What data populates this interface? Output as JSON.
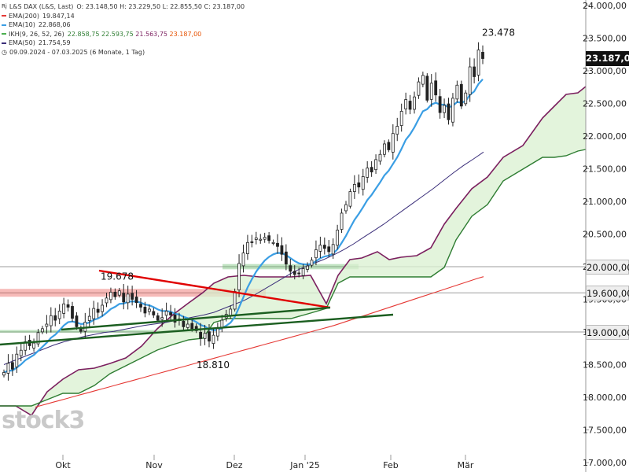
{
  "header": {
    "symbol_line": "L&S DAX (L&S, Last)",
    "ohlc": "O: 23.148,50  H: 23.229,50  L: 22.855,50  C: 23.187,00",
    "date_range": "09.09.2024 - 07.03.2025  (6 Monate, 1 Tag)"
  },
  "legend": [
    {
      "label": "EMA(200)",
      "value": "19.847,14",
      "color": "#e53935"
    },
    {
      "label": "EMA(10)",
      "value": "22.868,06",
      "color": "#3a9ee4"
    },
    {
      "label": "IKH(9, 26, 52, 26)",
      "value": "22.858,75  22.593,75  21.563,75  23.187,00",
      "color": "#4caf50"
    },
    {
      "label": "EMA(50)",
      "value": "21.754,59",
      "color": "#3b2f7a"
    }
  ],
  "watermark": "stock3",
  "chart_data": {
    "type": "candlestick",
    "title": "L&S DAX (L&S, Last)",
    "x_labels": [
      "Okt",
      "Nov",
      "Dez",
      "Jan '25",
      "Feb",
      "Mär"
    ],
    "y_ticks": [
      "24.000,00",
      "23.500,00",
      "23.000,00",
      "22.500,00",
      "22.000,00",
      "21.500,00",
      "21.000,00",
      "20.500,00",
      "20.000,00",
      "19.500,00",
      "19.000,00",
      "18.500,00",
      "18.000,00",
      "17.500,00",
      "17.000,00"
    ],
    "ylim": [
      17000,
      24000
    ],
    "price_tags": [
      {
        "label": "23.187,00",
        "value": 23187,
        "style": "dark"
      },
      {
        "label": "20.000,00",
        "value": 20000,
        "style": "light"
      },
      {
        "label": "19.600,00",
        "value": 19600,
        "style": "light"
      },
      {
        "label": "19.000,00",
        "value": 19000,
        "style": "light"
      }
    ],
    "horizontal_lines": [
      20000,
      19600,
      19000
    ],
    "zones": [
      {
        "name": "resistance-zone",
        "from": 19540,
        "to": 19660,
        "color": "#e53935"
      },
      {
        "name": "support-zone-green",
        "from": 18990,
        "to": 19030,
        "color": "#4caf50"
      },
      {
        "name": "breakout-zone",
        "from": 19960,
        "to": 20040,
        "color": "#4caf50"
      }
    ],
    "annotations": [
      {
        "text": "23.478",
        "value": 23478
      },
      {
        "text": "19.678",
        "value": 19678
      },
      {
        "text": "18.810",
        "value": 18810
      }
    ],
    "closes": [
      18380,
      18520,
      18430,
      18660,
      18720,
      18850,
      18790,
      18830,
      18990,
      19050,
      19120,
      19250,
      19180,
      19320,
      19430,
      19380,
      19210,
      19080,
      19010,
      19150,
      19240,
      19360,
      19300,
      19410,
      19520,
      19610,
      19540,
      19630,
      19460,
      19580,
      19500,
      19450,
      19380,
      19290,
      19350,
      19260,
      19180,
      19220,
      19320,
      19260,
      19150,
      19200,
      19080,
      19120,
      19050,
      19020,
      18900,
      18980,
      18860,
      18950,
      19050,
      19180,
      19270,
      19350,
      19620,
      20050,
      20210,
      20370,
      20380,
      20440,
      20420,
      20450,
      20400,
      20370,
      20310,
      20190,
      20040,
      19930,
      19880,
      19900,
      19970,
      20010,
      20100,
      20260,
      20330,
      20280,
      20230,
      20340,
      20560,
      20820,
      20950,
      21150,
      21260,
      21220,
      21380,
      21510,
      21450,
      21640,
      21720,
      21880,
      21790,
      22040,
      22150,
      22380,
      22560,
      22410,
      22600,
      22830,
      22930,
      22550,
      22810,
      22630,
      22360,
      22470,
      22250,
      22580,
      22780,
      22460,
      22660,
      23060,
      22910,
      23320,
      23187
    ],
    "series": [
      {
        "name": "EMA(200)",
        "color": "#e53935",
        "values": [
          17850,
          17875,
          17900,
          17925,
          17950,
          17975,
          18000,
          18025,
          18050,
          18075,
          18100,
          18125,
          18150,
          18175,
          18200,
          18225,
          18250,
          18275,
          18300,
          18325,
          18350,
          18375,
          18400,
          18425,
          18450,
          18475,
          18500,
          18525,
          18550,
          18575,
          18600,
          18625,
          18650,
          18675,
          18700,
          18725,
          18750,
          18775,
          18800,
          18825,
          18850,
          18875,
          18900,
          18925,
          18950,
          18975,
          19000,
          19025,
          19050,
          19075,
          19100,
          19130,
          19160,
          19190,
          19220,
          19250,
          19280,
          19310,
          19340,
          19370,
          19400,
          19430,
          19460,
          19490,
          19520,
          19550,
          19580,
          19610,
          19640,
          19670,
          19700,
          19730,
          19760,
          19790,
          19820,
          19847
        ]
      },
      {
        "name": "EMA(50)",
        "color": "#3b2f7a",
        "values": [
          18500,
          18560,
          18620,
          18680,
          18740,
          18800,
          18850,
          18890,
          18930,
          18960,
          18990,
          19010,
          19040,
          19070,
          19100,
          19120,
          19140,
          19170,
          19200,
          19230,
          19260,
          19300,
          19360,
          19420,
          19480,
          19560,
          19650,
          19740,
          19830,
          19920,
          19990,
          20050,
          20110,
          20180,
          20260,
          20350,
          20450,
          20550,
          20650,
          20760,
          20870,
          20980,
          21090,
          21200,
          21320,
          21440,
          21550,
          21650,
          21755
        ]
      },
      {
        "name": "Ichimoku Span A",
        "color": "#7b1f5f",
        "values": []
      },
      {
        "name": "Ichimoku Span B",
        "color": "#2e7d32",
        "values": []
      }
    ]
  }
}
